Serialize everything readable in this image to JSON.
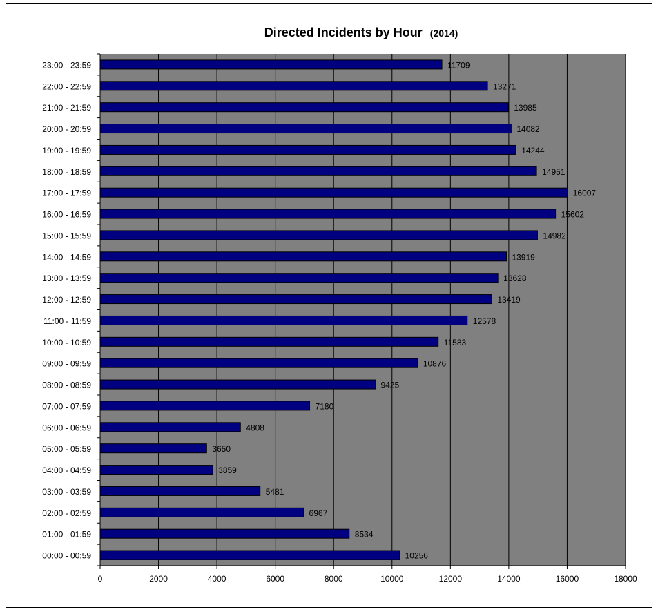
{
  "chart_data": {
    "type": "bar",
    "orientation": "horizontal",
    "title": "Directed Incidents by Hour",
    "title_suffix": "(2014)",
    "categories": [
      "00:00 - 00:59",
      "01:00 - 01:59",
      "02:00 - 02:59",
      "03:00 - 03:59",
      "04:00 - 04:59",
      "05:00 - 05:59",
      "06:00 - 06:59",
      "07:00 - 07:59",
      "08:00 - 08:59",
      "09:00 - 09:59",
      "10:00 - 10:59",
      "11:00 - 11:59",
      "12:00 - 12:59",
      "13:00 - 13:59",
      "14:00 - 14:59",
      "15:00 - 15:59",
      "16:00 - 16:59",
      "17:00 - 17:59",
      "18:00 - 18:59",
      "19:00 - 19:59",
      "20:00 - 20:59",
      "21:00 - 21:59",
      "22:00 - 22:59",
      "23:00 - 23:59"
    ],
    "values": [
      10256,
      8534,
      6967,
      5481,
      3859,
      3650,
      4808,
      7180,
      9425,
      10876,
      11583,
      12578,
      13419,
      13628,
      13919,
      14982,
      15602,
      16007,
      14951,
      14244,
      14082,
      13985,
      13271,
      11709
    ],
    "xlim": [
      0,
      18000
    ],
    "xticks": [
      0,
      2000,
      4000,
      6000,
      8000,
      10000,
      12000,
      14000,
      16000,
      18000
    ],
    "grid": true,
    "legend": "none",
    "colors": {
      "bar": "#000080",
      "plot_background": "#808080",
      "gridline": "#000000"
    }
  }
}
